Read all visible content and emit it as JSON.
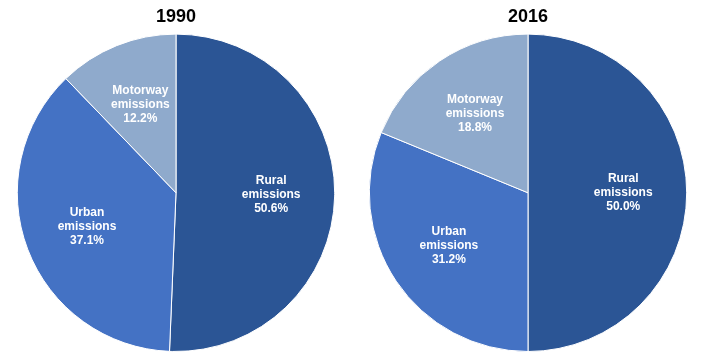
{
  "chart_data": [
    {
      "type": "pie",
      "title": "1990",
      "categories": [
        "Rural\nemissions\n50.6%",
        "Urban\nemissions\n37.1%",
        "Motorway\nemissions\n12.2%"
      ],
      "values": [
        50.6,
        37.1,
        12.2
      ],
      "colors": [
        "#2B5595",
        "#4472C4",
        "#8FAACC"
      ]
    },
    {
      "type": "pie",
      "title": "2016",
      "categories": [
        "Rural\nemissions\n50.0%",
        "Urban\nemissions\n31.2%",
        "Motorway\nemissions\n18.8%"
      ],
      "values": [
        50.0,
        31.2,
        18.8
      ],
      "colors": [
        "#2B5595",
        "#4472C4",
        "#8FAACC"
      ]
    }
  ]
}
